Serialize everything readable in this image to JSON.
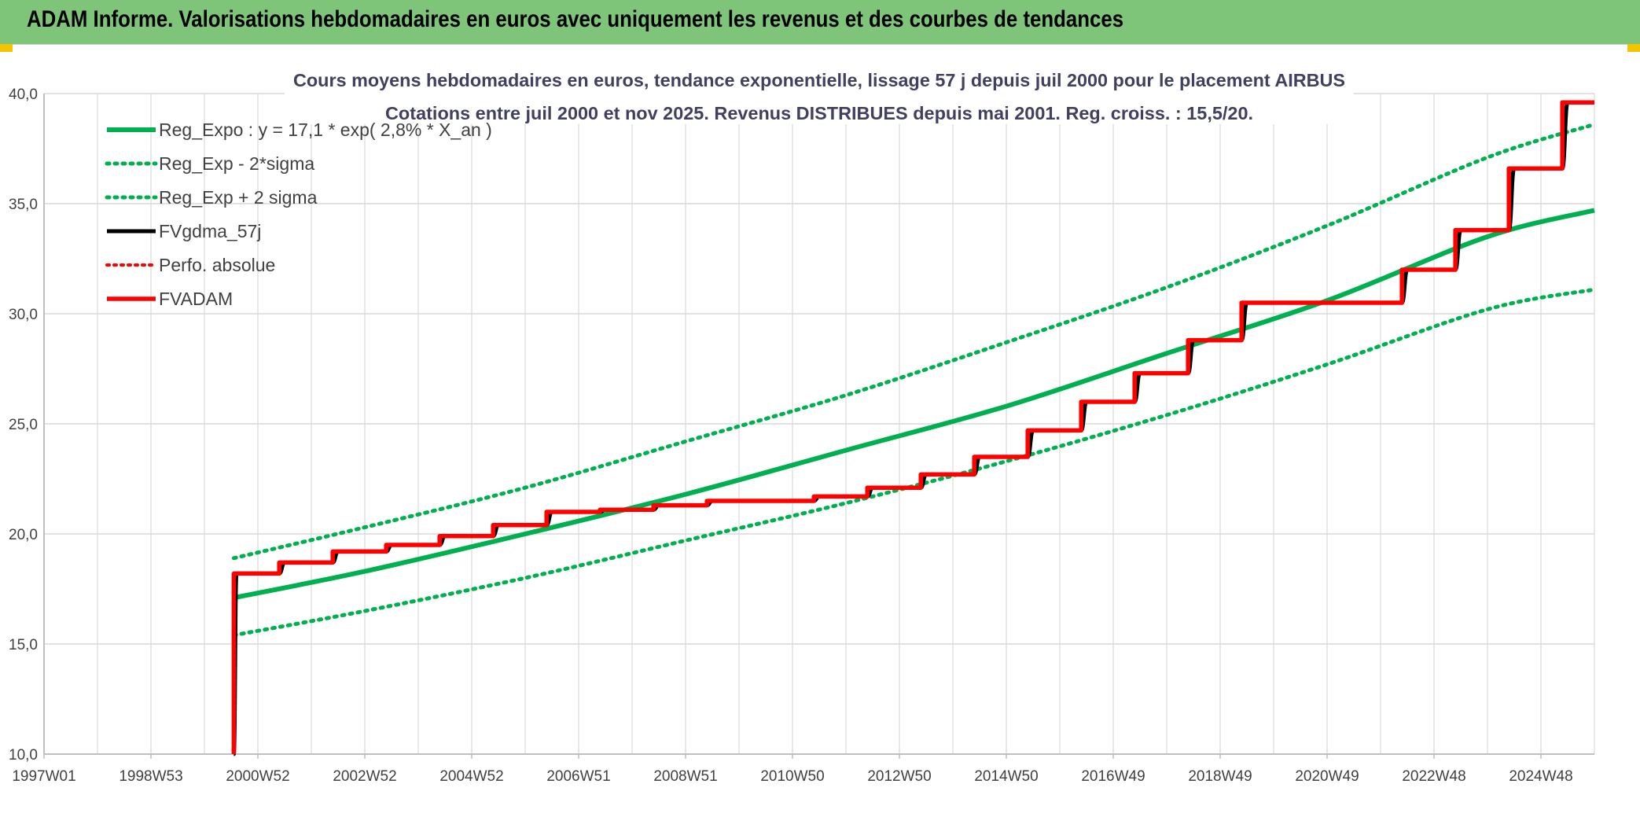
{
  "banner": {
    "title": "ADAM Informe. Valorisations hebdomadaires en euros avec uniquement les revenus et des courbes de tendances"
  },
  "colors": {
    "banner_bg": "#7ec57a",
    "reg_green": "#00b050",
    "fvadam_red": "#ff0000",
    "fvgdma_black": "#000000",
    "grid": "#d9d9d9",
    "corner_accent": "#f5c400"
  },
  "chart_data": {
    "type": "line",
    "title": "Cours moyens hebdomadaires en euros, tendance exponentielle, lissage 57 j depuis juil 2000 pour le placement AIRBUS",
    "subtitle": "Cotations entre juil 2000 et nov 2025. Revenus DISTRIBUES depuis mai 2001. Reg. croiss. : 15,5/20.",
    "xlabel": "",
    "ylabel": "",
    "ylim": [
      10,
      40
    ],
    "yticks": [
      "10,0",
      "15,0",
      "20,0",
      "25,0",
      "30,0",
      "35,0",
      "40,0"
    ],
    "xlim": [
      1997.0,
      2026.0
    ],
    "xtick_labels": [
      "1997W01",
      "1998W53",
      "2000W52",
      "2002W52",
      "2004W52",
      "2006W51",
      "2008W51",
      "2010W50",
      "2012W50",
      "2014W50",
      "2016W49",
      "2018W49",
      "2020W49",
      "2022W48",
      "2024W48"
    ],
    "xtick_positions": [
      1997.0,
      1999.0,
      2001.0,
      2003.0,
      2005.0,
      2007.0,
      2009.0,
      2011.0,
      2013.0,
      2015.0,
      2017.0,
      2019.0,
      2021.0,
      2023.0,
      2025.0
    ],
    "grid": true,
    "legend_position": "top-left",
    "series": [
      {
        "name": "Reg_Expo : y = 17,1 * exp( 2,8% *  X_an )",
        "style": "solid-green-thick",
        "x": [
          2000.55,
          2003,
          2006,
          2009,
          2012,
          2015,
          2018,
          2021,
          2024,
          2026.0
        ],
        "y": [
          17.1,
          18.3,
          20.0,
          21.8,
          23.8,
          25.8,
          28.2,
          30.6,
          33.5,
          34.7
        ]
      },
      {
        "name": "Reg_Exp - 2*sigma",
        "style": "dotted-green",
        "x": [
          2000.55,
          2003,
          2006,
          2009,
          2012,
          2015,
          2018,
          2021,
          2024,
          2026.0
        ],
        "y": [
          15.4,
          16.5,
          18.0,
          19.7,
          21.4,
          23.3,
          25.4,
          27.7,
          30.2,
          31.1
        ]
      },
      {
        "name": "Reg_Exp + 2 sigma",
        "style": "dotted-green",
        "x": [
          2000.55,
          2003,
          2006,
          2009,
          2012,
          2015,
          2018,
          2021,
          2024,
          2026.0
        ],
        "y": [
          18.9,
          20.3,
          22.1,
          24.2,
          26.3,
          28.7,
          31.2,
          34.0,
          37.1,
          38.6
        ]
      },
      {
        "name": "FVgdma_57j",
        "style": "solid-black",
        "x": [
          2000.55,
          2000.6,
          2001.4,
          2001.5,
          2002.4,
          2002.5,
          2003.4,
          2003.5,
          2004.4,
          2004.5,
          2005.4,
          2005.5,
          2006.4,
          2006.5,
          2007.4,
          2007.5,
          2008.4,
          2008.5,
          2009.4,
          2009.5,
          2011.4,
          2011.5,
          2012.4,
          2012.5,
          2013.4,
          2013.5,
          2014.4,
          2014.5,
          2015.4,
          2015.5,
          2016.4,
          2016.5,
          2017.4,
          2017.5,
          2018.4,
          2018.5,
          2019.4,
          2019.5,
          2022.4,
          2022.5,
          2023.4,
          2023.5,
          2024.4,
          2024.5,
          2025.4,
          2025.5,
          2026.0
        ],
        "y": [
          10.0,
          18.2,
          18.2,
          18.7,
          18.7,
          19.2,
          19.2,
          19.5,
          19.5,
          19.9,
          19.9,
          20.4,
          20.4,
          21.0,
          21.0,
          21.1,
          21.1,
          21.3,
          21.3,
          21.5,
          21.5,
          21.7,
          21.7,
          22.1,
          22.1,
          22.7,
          22.7,
          23.5,
          23.5,
          24.7,
          24.7,
          26.0,
          26.0,
          27.3,
          27.3,
          28.8,
          28.8,
          30.5,
          30.5,
          32.0,
          32.0,
          33.8,
          33.8,
          36.6,
          36.6,
          39.6,
          39.6
        ]
      },
      {
        "name": "Perfo. absolue",
        "style": "dotted-red",
        "x": [],
        "y": []
      },
      {
        "name": "FVADAM",
        "style": "solid-red-thick",
        "x": [
          2000.55,
          2000.55,
          2001.4,
          2001.4,
          2002.4,
          2002.4,
          2003.4,
          2003.4,
          2004.4,
          2004.4,
          2005.4,
          2005.4,
          2006.4,
          2006.4,
          2007.4,
          2007.4,
          2008.4,
          2008.4,
          2009.4,
          2009.4,
          2011.4,
          2011.4,
          2012.4,
          2012.4,
          2013.4,
          2013.4,
          2014.4,
          2014.4,
          2015.4,
          2015.4,
          2016.4,
          2016.4,
          2017.4,
          2017.4,
          2018.4,
          2018.4,
          2019.4,
          2019.4,
          2022.4,
          2022.4,
          2023.4,
          2023.4,
          2024.4,
          2024.4,
          2025.4,
          2025.4,
          2026.0
        ],
        "y": [
          10.0,
          18.2,
          18.2,
          18.7,
          18.7,
          19.2,
          19.2,
          19.5,
          19.5,
          19.9,
          19.9,
          20.4,
          20.4,
          21.0,
          21.0,
          21.1,
          21.1,
          21.3,
          21.3,
          21.5,
          21.5,
          21.7,
          21.7,
          22.1,
          22.1,
          22.7,
          22.7,
          23.5,
          23.5,
          24.7,
          24.7,
          26.0,
          26.0,
          27.3,
          27.3,
          28.8,
          28.8,
          30.5,
          30.5,
          32.0,
          32.0,
          33.8,
          33.8,
          36.6,
          36.6,
          39.6,
          39.6
        ]
      }
    ]
  }
}
